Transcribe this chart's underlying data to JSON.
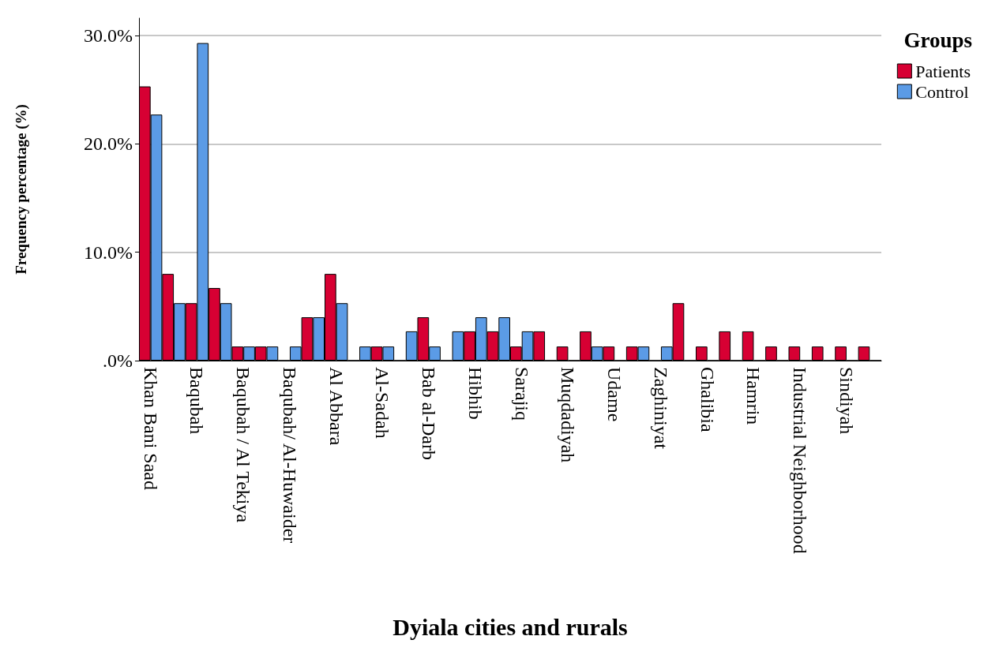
{
  "chart_data": {
    "type": "bar",
    "xlabel": "Dyiala cities and rurals",
    "ylabel": "Frequency percentage (%)",
    "legend_title": "Groups",
    "categories": [
      "Khan Bani Saad",
      null,
      "Baqubah",
      null,
      "Baqubah / Al Tekiya",
      null,
      "Baqubah/ Al-Huwaider",
      null,
      "Al Abbara",
      null,
      "Al-Sadah",
      null,
      "Bab al-Darb",
      null,
      "Hibhib",
      null,
      "Sarajiq",
      null,
      "Muqdadiyah",
      null,
      "Udame",
      null,
      "Zaghiniyat",
      null,
      "Ghalibia",
      null,
      "Hamrin",
      null,
      "Industrial Neighborhood",
      null,
      "Sindiyah",
      null
    ],
    "series": [
      {
        "name": "Patients",
        "color": "#d70033",
        "values": [
          25.3,
          8.0,
          5.3,
          6.7,
          1.3,
          1.3,
          0,
          4.0,
          8.0,
          0,
          1.3,
          0,
          4.0,
          0,
          2.7,
          2.7,
          1.3,
          2.7,
          1.3,
          2.7,
          1.3,
          1.3,
          0,
          5.3,
          1.3,
          2.7,
          2.7,
          1.3,
          1.3,
          1.3,
          1.3,
          1.3
        ]
      },
      {
        "name": "Control",
        "color": "#5b9be6",
        "values": [
          22.7,
          5.3,
          29.3,
          5.3,
          1.3,
          1.3,
          1.3,
          4.0,
          5.3,
          1.3,
          1.3,
          2.7,
          1.3,
          2.7,
          4.0,
          4.0,
          2.7,
          0,
          0,
          1.3,
          0,
          1.3,
          1.3,
          0,
          0,
          0,
          0,
          0,
          0,
          0,
          0,
          0
        ]
      }
    ],
    "ylim": [
      0,
      31.6
    ],
    "yticks": [
      {
        "value": 0,
        "label": ".0%"
      },
      {
        "value": 10,
        "label": "10.0%"
      },
      {
        "value": 20,
        "label": "20.0%"
      },
      {
        "value": 30,
        "label": "30.0%"
      }
    ],
    "grid": "y",
    "legend": "top right"
  }
}
